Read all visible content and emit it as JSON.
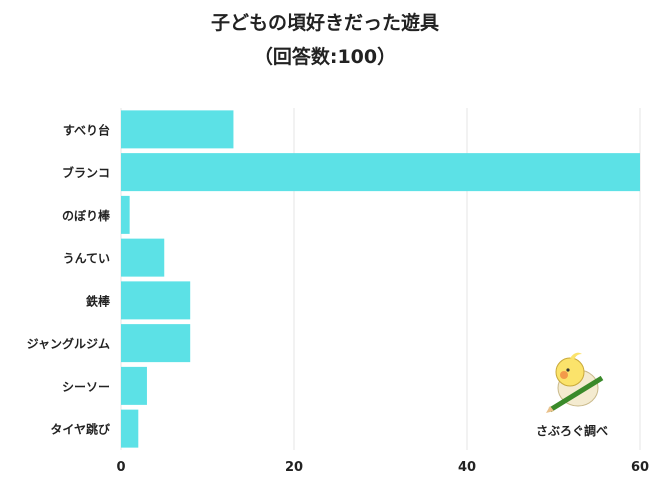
{
  "chart_data": {
    "type": "bar",
    "orientation": "horizontal",
    "title": "子どもの頃好きだった遊具",
    "subtitle": "（回答数:100）",
    "categories": [
      "すべり台",
      "ブランコ",
      "のぼり棒",
      "うんてい",
      "鉄棒",
      "ジャングルジム",
      "シーソー",
      "タイヤ跳び"
    ],
    "values": [
      13,
      60,
      1,
      5,
      8,
      8,
      3,
      2
    ],
    "xlim": [
      0,
      60
    ],
    "xticks": [
      0,
      20,
      40,
      60
    ],
    "grid": true,
    "bar_color": "#5ce1e6",
    "xlabel": "",
    "ylabel": ""
  },
  "logo": {
    "text": "さぶろぐ調べ"
  }
}
